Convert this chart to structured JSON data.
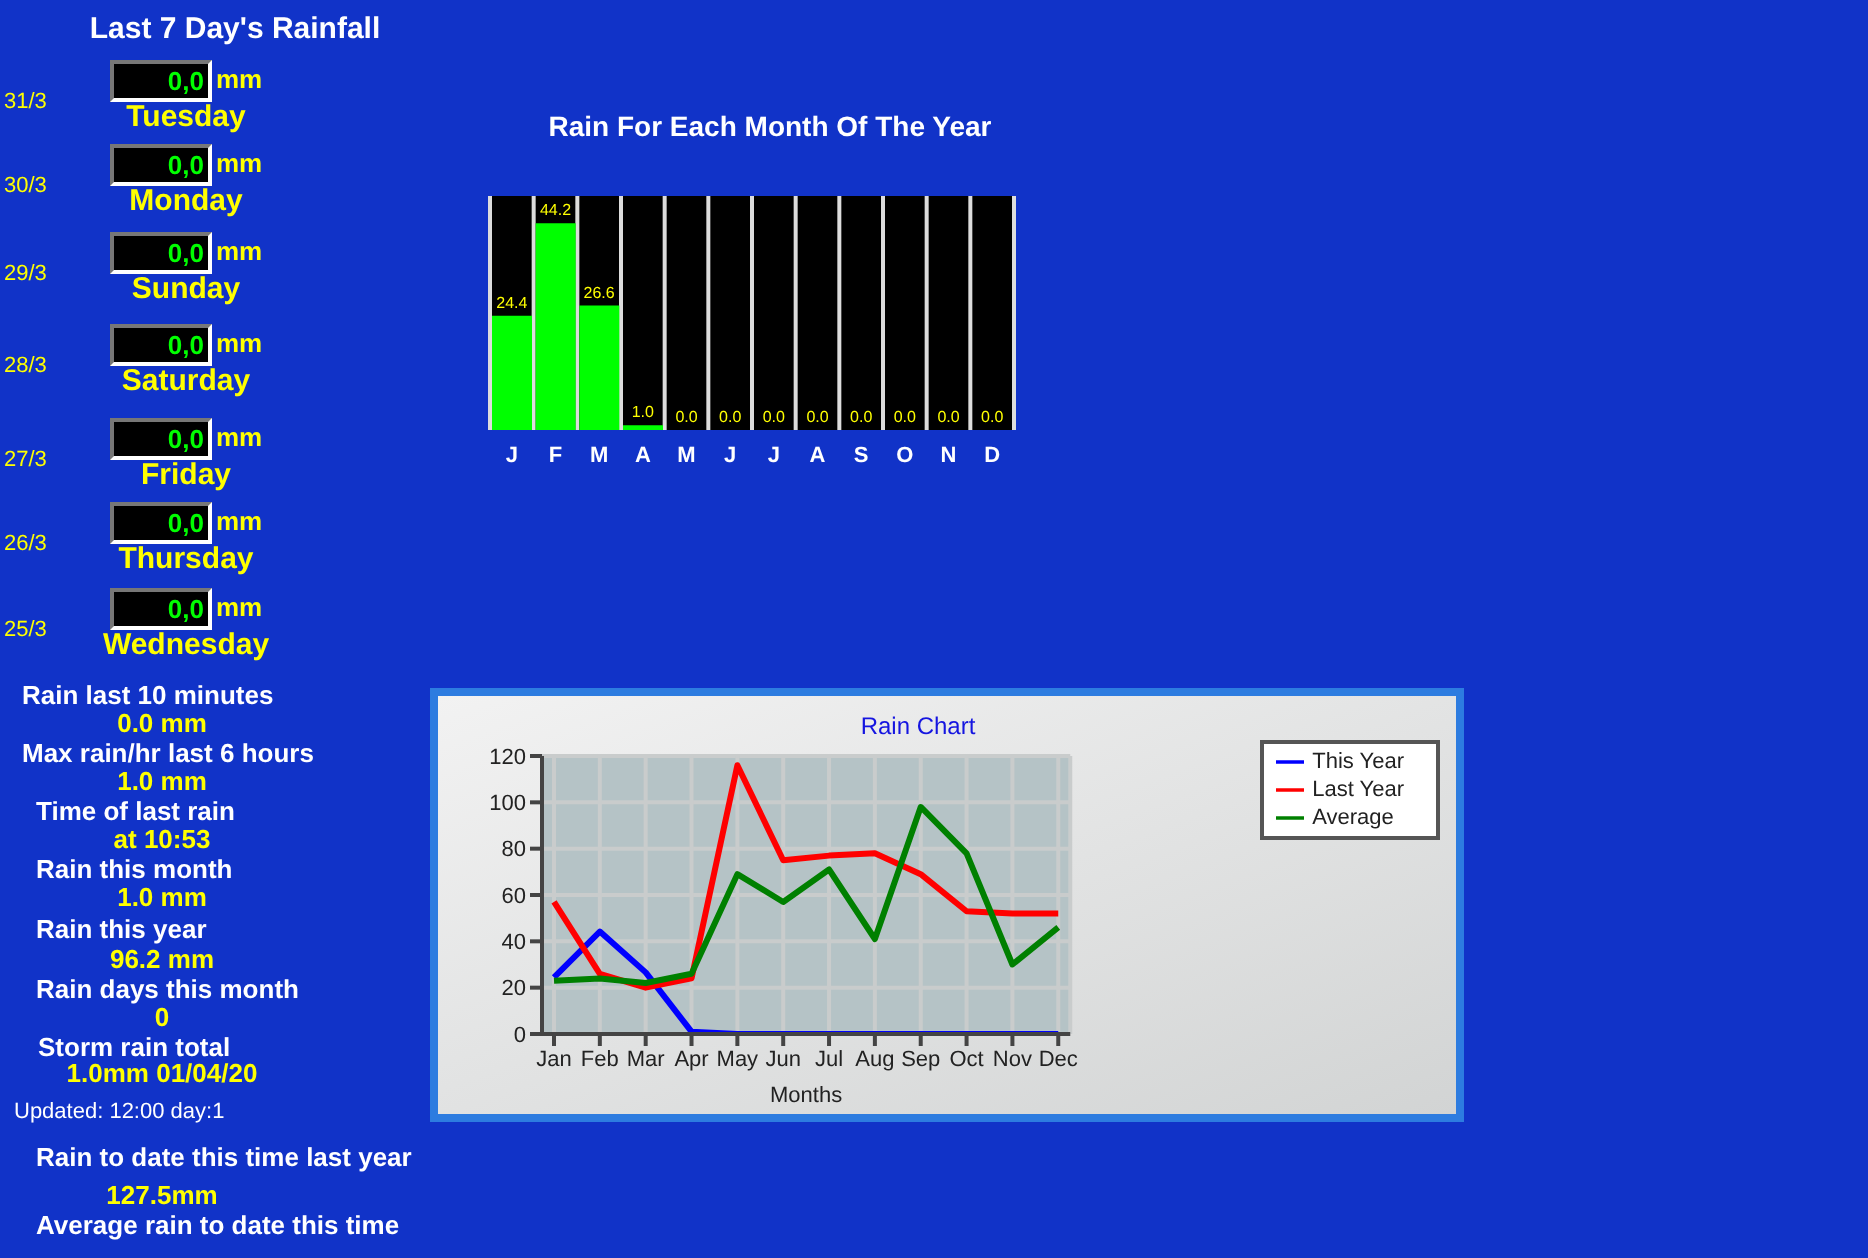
{
  "chart_data": [
    {
      "type": "other",
      "title": "Last 7 Day's Rainfall",
      "annotations": [
        "31/3",
        "0,0",
        "mm",
        "Tuesday",
        "30/3",
        "0,0",
        "mm",
        "Monday",
        "29/3",
        "0,0",
        "mm",
        "Sunday",
        "28/3",
        "0,0",
        "mm",
        "Saturday",
        "27/3",
        "0,0",
        "mm",
        "Friday",
        "26/3",
        "0,0",
        "mm",
        "Thursday",
        "25/3",
        "0,0",
        "mm",
        "Wednesday",
        "Rain last 10 minutes",
        "0.0 mm",
        "Max rain/hr last 6 hours",
        "1.0 mm",
        "Time of last rain",
        "at 10:53",
        "Rain this month",
        "1.0 mm",
        "Rain this year",
        "96.2 mm",
        "Rain days this month",
        "0",
        "Storm rain total",
        "1.0mm 01/04/20",
        "Updated: 12:00 day:1",
        "Rain to date this time last year",
        "127.5mm",
        "Average rain to date this time"
      ]
    },
    {
      "type": "bar",
      "title": "Rain For Each Month Of The Year",
      "categories": [
        "J",
        "F",
        "M",
        "A",
        "M",
        "J",
        "J",
        "A",
        "S",
        "O",
        "N",
        "D"
      ],
      "values": [
        24.4,
        44.2,
        26.6,
        1.0,
        0,
        0,
        0,
        0,
        0,
        0,
        0,
        0
      ],
      "value_labels": [
        "24.4",
        "44.2",
        "26.6",
        "1.0",
        "0.0",
        "0.0",
        "0.0",
        "0.0",
        "0.0",
        "0.0",
        "0.0",
        "0.0"
      ],
      "color": "#00ff00",
      "ylim": [
        0,
        50
      ],
      "tick_labels": "x"
    },
    {
      "type": "line",
      "title": "Rain Chart",
      "xlabel": "Months",
      "categories": [
        "Jan",
        "Feb",
        "Mar",
        "Apr",
        "May",
        "Jun",
        "Jul",
        "Aug",
        "Sep",
        "Oct",
        "Nov",
        "Dec"
      ],
      "series": [
        {
          "name": "This Year",
          "color": "#0000ff",
          "values": [
            24.4,
            44.2,
            26.6,
            1.0,
            0,
            0,
            0,
            0,
            0,
            0,
            0,
            0
          ]
        },
        {
          "name": "Last Year",
          "color": "#ff0000",
          "values": [
            57,
            26,
            20,
            24,
            116,
            75,
            77,
            78,
            69,
            53,
            52,
            52
          ]
        },
        {
          "name": "Average",
          "color": "#008000",
          "values": [
            23,
            24,
            22,
            26,
            69,
            57,
            71,
            41,
            98,
            78,
            30,
            46
          ]
        }
      ],
      "ylim": [
        0,
        120
      ],
      "yticks": [
        0,
        20,
        40,
        60,
        80,
        100,
        120
      ],
      "grid": true,
      "legend": "right",
      "marker": "none",
      "line_style": "solid"
    }
  ]
}
